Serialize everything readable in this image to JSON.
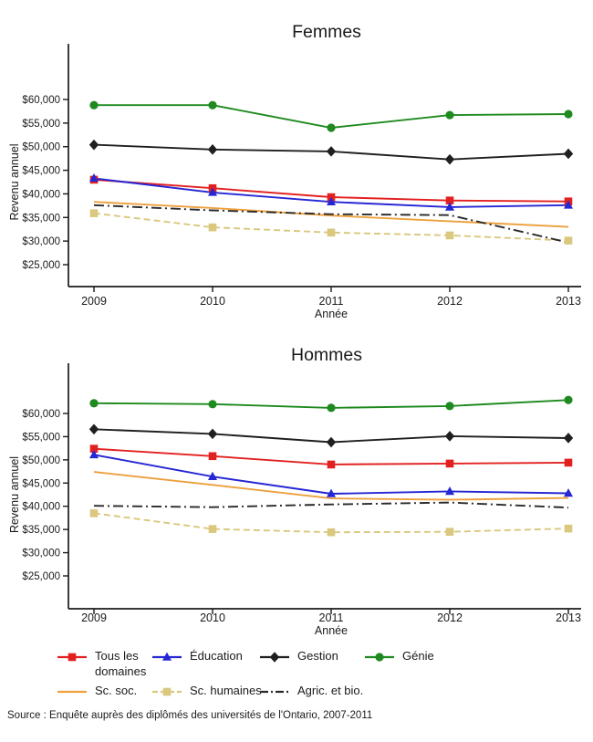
{
  "source": "Source : Enquête auprès des diplômés des universités de l'Ontario, 2007-2011",
  "axis_color": "#1a1a1a",
  "chart_data": [
    {
      "type": "line",
      "title": "Femmes",
      "xlabel": "Année",
      "ylabel": "Revenu annuel",
      "x": [
        "2009",
        "2010",
        "2011",
        "2012",
        "2013"
      ],
      "yticks": [
        60000,
        55000,
        50000,
        45000,
        40000,
        35000,
        30000,
        25000
      ],
      "ytick_labels": [
        "$60,000",
        "$55,000",
        "$50,000",
        "$45,000",
        "$40,000",
        "$35,000",
        "$30,000",
        "$25,000"
      ],
      "ylim": [
        20500,
        72000
      ],
      "grid": false,
      "series": [
        {
          "id": "tous-les-domaines",
          "name": "Tous les domaines",
          "color": "#e32020",
          "marker": "square",
          "line": "solid",
          "values": [
            43000,
            41200,
            39300,
            38600,
            38400
          ]
        },
        {
          "id": "education",
          "name": "Éducation",
          "color": "#2526d4",
          "marker": "triangle",
          "line": "solid",
          "values": [
            43300,
            40300,
            38300,
            37200,
            37600
          ]
        },
        {
          "id": "gestion",
          "name": "Gestion",
          "color": "#1f1f1f",
          "marker": "diamond",
          "line": "solid",
          "values": [
            50400,
            49400,
            49000,
            47300,
            48500
          ]
        },
        {
          "id": "genie",
          "name": "Génie",
          "color": "#1f8a1f",
          "marker": "circle",
          "line": "solid",
          "values": [
            58800,
            58800,
            54000,
            56700,
            56900
          ]
        },
        {
          "id": "sc-soc",
          "name": "Sc. soc.",
          "color": "#eda03c",
          "marker": "none",
          "line": "solid",
          "values": [
            38300,
            37000,
            35400,
            34200,
            33000
          ]
        },
        {
          "id": "sc-humaines",
          "name": "Sc. humaines",
          "color": "#d9c87e",
          "marker": "square",
          "line": "dashed",
          "values": [
            35900,
            32900,
            31800,
            31200,
            30100
          ]
        },
        {
          "id": "agric-et-bio",
          "name": "Agric. et bio.",
          "color": "#2a2a2a",
          "marker": "none",
          "line": "dashdot",
          "values": [
            37600,
            36500,
            35700,
            35500,
            29700
          ]
        }
      ]
    },
    {
      "type": "line",
      "title": "Hommes",
      "xlabel": "Année",
      "ylabel": "Revenu annuel",
      "x": [
        "2009",
        "2010",
        "2011",
        "2012",
        "2013"
      ],
      "yticks": [
        60000,
        55000,
        50000,
        45000,
        40000,
        35000,
        30000,
        25000
      ],
      "ytick_labels": [
        "$60,000",
        "$55,000",
        "$50,000",
        "$45,000",
        "$40,000",
        "$35,000",
        "$30,000",
        "$25,000"
      ],
      "ylim": [
        20500,
        69500
      ],
      "grid": false,
      "series": [
        {
          "id": "tous-les-domaines",
          "name": "Tous les domaines",
          "color": "#e32020",
          "marker": "square",
          "line": "solid",
          "values": [
            52400,
            50800,
            49000,
            49200,
            49400
          ]
        },
        {
          "id": "education",
          "name": "Éducation",
          "color": "#2526d4",
          "marker": "triangle",
          "line": "solid",
          "values": [
            51100,
            46400,
            42700,
            43200,
            42800
          ]
        },
        {
          "id": "gestion",
          "name": "Gestion",
          "color": "#1f1f1f",
          "marker": "diamond",
          "line": "solid",
          "values": [
            56600,
            55600,
            53800,
            55100,
            54700
          ]
        },
        {
          "id": "genie",
          "name": "Génie",
          "color": "#1f8a1f",
          "marker": "circle",
          "line": "solid",
          "values": [
            62200,
            62000,
            61200,
            61600,
            62900
          ]
        },
        {
          "id": "sc-soc",
          "name": "Sc. soc.",
          "color": "#eda03c",
          "marker": "none",
          "line": "solid",
          "values": [
            47400,
            44600,
            41700,
            41400,
            41800
          ]
        },
        {
          "id": "sc-humaines",
          "name": "Sc. humaines",
          "color": "#d9c87e",
          "marker": "square",
          "line": "dashed",
          "values": [
            38500,
            35100,
            34400,
            34500,
            35200
          ]
        },
        {
          "id": "agric-et-bio",
          "name": "Agric. et bio.",
          "color": "#2a2a2a",
          "marker": "none",
          "line": "dashdot",
          "values": [
            40100,
            39800,
            40400,
            40800,
            39700
          ]
        }
      ]
    }
  ],
  "legend": {
    "items": [
      {
        "label": "Tous les domaines",
        "series_index": 0
      },
      {
        "label": "Éducation",
        "series_index": 1
      },
      {
        "label": "Gestion",
        "series_index": 2
      },
      {
        "label": "Génie",
        "series_index": 3
      },
      {
        "label": "Sc. soc.",
        "series_index": 4
      },
      {
        "label": "Sc. humaines",
        "series_index": 5
      },
      {
        "label": "Agric. et bio.",
        "series_index": 6
      }
    ]
  }
}
